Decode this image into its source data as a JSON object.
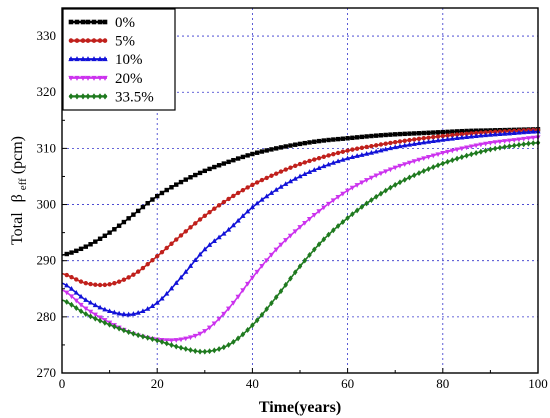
{
  "chart_data": {
    "type": "line",
    "title": "",
    "xlabel": "Time(years)",
    "ylabel": {
      "prefix": "Total",
      "symbol": "β",
      "subscript": "eff",
      "unit": "(pcm)"
    },
    "xlim": [
      0,
      100
    ],
    "ylim": [
      270,
      335
    ],
    "xticks": [
      0,
      20,
      40,
      60,
      80,
      100
    ],
    "yticks": [
      270,
      280,
      290,
      300,
      310,
      320,
      330
    ],
    "grid": true,
    "legend_position": "top-left",
    "x": [
      0,
      5,
      10,
      15,
      20,
      25,
      30,
      35,
      40,
      45,
      50,
      55,
      60,
      65,
      70,
      75,
      80,
      85,
      90,
      95,
      100
    ],
    "series": [
      {
        "name": "0%",
        "color": "#000000",
        "marker": "square",
        "values": [
          291,
          292.5,
          295,
          298.2,
          301.5,
          304,
          306,
          307.6,
          309,
          310,
          310.8,
          311.4,
          311.8,
          312.2,
          312.5,
          312.7,
          312.9,
          313.1,
          313.2,
          313.3,
          313.4
        ]
      },
      {
        "name": "5%",
        "color": "#c0201c",
        "marker": "circle",
        "values": [
          287.7,
          286,
          285.8,
          287.5,
          290.8,
          294.5,
          298,
          301,
          303.5,
          305.5,
          307.2,
          308.5,
          309.6,
          310.4,
          311.1,
          311.7,
          312.2,
          312.6,
          312.9,
          313.1,
          313.3
        ]
      },
      {
        "name": "10%",
        "color": "#1212d8",
        "marker": "triangle-up",
        "values": [
          286,
          283,
          281,
          280.5,
          282.5,
          287,
          292,
          295.5,
          299.5,
          302.6,
          305,
          306.8,
          308.2,
          309.2,
          310.2,
          310.9,
          311.5,
          312,
          312.4,
          312.7,
          313
        ]
      },
      {
        "name": "20%",
        "color": "#cc33ee",
        "marker": "triangle-down",
        "values": [
          284.8,
          281.5,
          279,
          277,
          276,
          276,
          277.5,
          281.5,
          287,
          292,
          296,
          299.5,
          302.5,
          304.8,
          306.6,
          308,
          309.2,
          310.2,
          311,
          311.5,
          312
        ]
      },
      {
        "name": "33.5%",
        "color": "#1f7a1f",
        "marker": "diamond",
        "values": [
          283,
          280.5,
          278.6,
          277,
          275.8,
          274.5,
          273.8,
          275,
          278.5,
          283.5,
          289,
          293.8,
          297.6,
          300.8,
          303.5,
          305.6,
          307.3,
          308.7,
          309.8,
          310.5,
          311
        ]
      }
    ]
  }
}
